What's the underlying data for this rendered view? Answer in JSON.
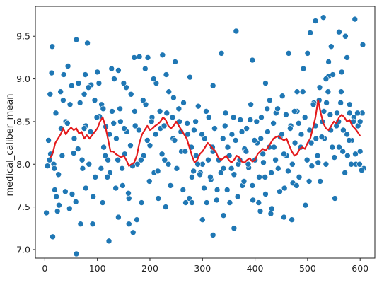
{
  "chart_data": {
    "type": "scatter",
    "ylabel": "medical_caliber_mean",
    "xlabel": "",
    "title": "",
    "xlim": [
      -18,
      628
    ],
    "ylim": [
      6.9,
      9.85
    ],
    "x_ticks": [
      0,
      100,
      200,
      300,
      400,
      500,
      600
    ],
    "y_ticks": [
      7.0,
      7.5,
      8.0,
      8.5,
      9.0,
      9.5
    ],
    "x_tick_labels": [
      "0",
      "100",
      "200",
      "300",
      "400",
      "500",
      "600"
    ],
    "y_tick_labels": [
      "7.0",
      "7.5",
      "8.0",
      "8.5",
      "9.0",
      "9.5"
    ],
    "grid": false,
    "scatter_color": "#1f77b4",
    "line_color": "#e41a1c",
    "series": [
      {
        "type": "scatter",
        "x": [
          3,
          5,
          7,
          9,
          11,
          13,
          15,
          17,
          19,
          21,
          24,
          27,
          30,
          33,
          36,
          40,
          44,
          48,
          52,
          56,
          60,
          64,
          68,
          72,
          75,
          78,
          81,
          84,
          88,
          92,
          96,
          100,
          104,
          108,
          112,
          116,
          120,
          124,
          128,
          132,
          136,
          140,
          144,
          148,
          152,
          156,
          160,
          164,
          168,
          172,
          176,
          180,
          184,
          188,
          192,
          196,
          200,
          204,
          208,
          212,
          216,
          220,
          224,
          228,
          232,
          236,
          240,
          244,
          248,
          252,
          256,
          260,
          264,
          268,
          272,
          276,
          280,
          284,
          288,
          292,
          296,
          300,
          304,
          308,
          312,
          316,
          320,
          324,
          328,
          332,
          336,
          340,
          344,
          348,
          352,
          356,
          360,
          364,
          368,
          372,
          376,
          380,
          384,
          388,
          392,
          396,
          400,
          404,
          408,
          412,
          416,
          420,
          424,
          428,
          432,
          436,
          440,
          444,
          448,
          452,
          456,
          460,
          464,
          468,
          472,
          476,
          480,
          484,
          488,
          492,
          496,
          500,
          504,
          508,
          512,
          516,
          520,
          524,
          528,
          532,
          536,
          540,
          544,
          548,
          552,
          556,
          560,
          564,
          568,
          572,
          576,
          580,
          584,
          588,
          592,
          596,
          600,
          604,
          607,
          10,
          14,
          18,
          22,
          26,
          31,
          35,
          39,
          43,
          47,
          51,
          55,
          59,
          63,
          67,
          71,
          77,
          83,
          87,
          91,
          95,
          99,
          103,
          107,
          111,
          115,
          119,
          123,
          127,
          131,
          135,
          139,
          143,
          147,
          151,
          155,
          159,
          163,
          167,
          171,
          175,
          179,
          183,
          187,
          191,
          195,
          199,
          203,
          207,
          211,
          215,
          219,
          223,
          227,
          231,
          235,
          239,
          243,
          247,
          251,
          255,
          259,
          263,
          267,
          271,
          275,
          279,
          283,
          287,
          291,
          295,
          299,
          303,
          307,
          311,
          315,
          319,
          323,
          327,
          331,
          335,
          339,
          343,
          347,
          351,
          355,
          359,
          363,
          367,
          371,
          375,
          379,
          383,
          387,
          391,
          395,
          399,
          403,
          407,
          411,
          415,
          419,
          423,
          427,
          431,
          435,
          439,
          443,
          447,
          451,
          455,
          459,
          463,
          467,
          471,
          475,
          479,
          483,
          487,
          491,
          495,
          499,
          503,
          507,
          511,
          515,
          519,
          523,
          527,
          531,
          535,
          539,
          543,
          547,
          551,
          555,
          559,
          563,
          567,
          571,
          575,
          579,
          583,
          587,
          591,
          595,
          599,
          603,
          60,
          78,
          122,
          160,
          230,
          300,
          340,
          360,
          410,
          455,
          470,
          505,
          515,
          522,
          530,
          535,
          540,
          560,
          575,
          600,
          605,
          75,
          150,
          170,
          245,
          320,
          395,
          420,
          480,
          500,
          545,
          565,
          580,
          590,
          320,
          110,
          280,
          140,
          430
        ],
        "y": [
          7.43,
          7.98,
          8.28,
          8.05,
          8.12,
          9.07,
          7.15,
          8.0,
          7.7,
          8.6,
          7.45,
          7.52,
          8.85,
          8.1,
          9.05,
          8.5,
          9.15,
          8.7,
          7.65,
          8.3,
          9.46,
          8.95,
          7.3,
          7.95,
          8.82,
          8.45,
          9.42,
          8.0,
          8.93,
          7.62,
          7.85,
          9.08,
          8.56,
          8.7,
          8.2,
          8.44,
          8.05,
          7.9,
          8.62,
          9.0,
          8.3,
          9.1,
          8.5,
          7.75,
          8.12,
          8.38,
          7.6,
          8.82,
          7.2,
          8.45,
          8.0,
          9.26,
          7.55,
          8.1,
          8.7,
          9.25,
          8.22,
          8.55,
          7.9,
          8.95,
          7.6,
          8.42,
          9.28,
          8.05,
          8.6,
          8.85,
          7.75,
          8.3,
          9.2,
          7.95,
          8.5,
          8.15,
          8.72,
          7.55,
          8.35,
          9.02,
          7.85,
          8.4,
          8.1,
          8.68,
          7.9,
          8.0,
          8.3,
          7.55,
          8.55,
          7.82,
          8.15,
          8.42,
          7.7,
          8.05,
          9.3,
          7.95,
          8.6,
          8.2,
          7.55,
          8.35,
          7.88,
          9.56,
          8.0,
          8.52,
          7.75,
          8.18,
          8.42,
          7.96,
          8.7,
          7.58,
          8.05,
          8.25,
          7.85,
          8.55,
          8.02,
          7.65,
          8.38,
          8.75,
          7.48,
          8.2,
          8.6,
          7.95,
          8.32,
          8.8,
          7.72,
          8.1,
          9.3,
          8.45,
          7.78,
          8.25,
          8.62,
          7.85,
          8.35,
          9.12,
          7.52,
          8.05,
          8.4,
          7.98,
          8.72,
          8.3,
          8.02,
          7.8,
          8.5,
          8.3,
          8.72,
          9.03,
          8.4,
          9.05,
          7.6,
          8.6,
          8.2,
          8.85,
          8.4,
          9.5,
          8.1,
          8.7,
          8.28,
          8.55,
          8.0,
          8.45,
          8.15,
          8.6,
          7.95,
          8.82,
          9.38,
          7.95,
          7.62,
          7.88,
          8.42,
          8.75,
          7.68,
          8.48,
          7.48,
          8.92,
          8.13,
          7.56,
          8.18,
          8.72,
          8.05,
          9.05,
          8.9,
          8.38,
          7.3,
          8.75,
          8.55,
          8.95,
          7.95,
          8.65,
          8.1,
          7.85,
          8.35,
          9.12,
          8.48,
          7.72,
          8.05,
          8.65,
          7.95,
          8.42,
          8.9,
          7.66,
          8.22,
          7.98,
          8.62,
          7.35,
          8.4,
          8.05,
          8.75,
          9.12,
          8.28,
          7.8,
          8.5,
          9.0,
          8.35,
          7.92,
          8.62,
          8.12,
          8.45,
          9.05,
          8.0,
          7.75,
          8.55,
          8.28,
          7.95,
          8.65,
          8.38,
          7.7,
          8.15,
          8.48,
          7.6,
          8.2,
          7.92,
          8.5,
          8.0,
          7.88,
          8.35,
          7.72,
          8.62,
          8.05,
          7.85,
          8.2,
          8.42,
          7.58,
          8.05,
          7.9,
          8.3,
          8.45,
          7.7,
          8.1,
          7.95,
          8.55,
          8.28,
          7.62,
          8.05,
          8.38,
          7.8,
          8.15,
          8.0,
          8.52,
          7.75,
          8.28,
          8.5,
          7.55,
          8.3,
          8.12,
          7.85,
          8.65,
          8.2,
          7.9,
          8.48,
          8.05,
          8.65,
          7.68,
          8.35,
          8.12,
          8.58,
          7.92,
          8.42,
          8.0,
          8.62,
          7.75,
          8.48,
          8.2,
          8.85,
          8.55,
          8.05,
          7.8,
          8.25,
          8.7,
          8.45,
          8.1,
          8.9,
          8.32,
          8.62,
          8.0,
          8.85,
          8.58,
          8.2,
          8.08,
          8.45,
          8.5,
          8.72,
          8.15,
          7.9,
          8.35,
          8.28,
          8.0,
          8.5,
          8.12,
          8.6,
          8.0,
          7.93,
          6.95,
          7.72,
          7.1,
          7.3,
          7.5,
          7.35,
          7.4,
          7.25,
          7.45,
          7.38,
          7.35,
          9.54,
          9.68,
          8.75,
          9.72,
          9.0,
          9.2,
          9.55,
          9.25,
          8.5,
          9.4,
          8.42,
          8.95,
          9.25,
          8.78,
          8.92,
          9.22,
          8.95,
          8.85,
          9.3,
          9.38,
          9.08,
          8.6,
          9.7,
          7.17,
          7.55,
          7.55,
          7.38,
          7.42
        ],
        "color": "#1f77b4"
      },
      {
        "type": "line",
        "x": [
          10,
          15,
          20,
          25,
          30,
          35,
          40,
          45,
          50,
          55,
          60,
          65,
          70,
          75,
          80,
          85,
          90,
          95,
          100,
          105,
          110,
          115,
          120,
          125,
          130,
          135,
          140,
          145,
          150,
          155,
          160,
          165,
          170,
          175,
          180,
          185,
          190,
          195,
          200,
          205,
          210,
          215,
          220,
          225,
          230,
          235,
          240,
          245,
          250,
          255,
          260,
          265,
          270,
          275,
          280,
          285,
          290,
          295,
          300,
          305,
          310,
          315,
          320,
          325,
          330,
          335,
          340,
          345,
          350,
          355,
          360,
          365,
          370,
          375,
          380,
          385,
          390,
          395,
          400,
          405,
          410,
          415,
          420,
          425,
          430,
          435,
          440,
          445,
          450,
          455,
          460,
          465,
          470,
          475,
          480,
          485,
          490,
          495,
          500,
          505,
          510,
          515,
          520,
          525,
          530,
          535,
          540,
          545,
          550,
          555,
          560,
          565,
          570,
          575,
          580,
          585,
          590,
          595,
          600
        ],
        "y": [
          8.07,
          8.13,
          8.25,
          8.3,
          8.35,
          8.42,
          8.35,
          8.4,
          8.43,
          8.4,
          8.42,
          8.36,
          8.38,
          8.3,
          8.34,
          8.3,
          8.34,
          8.38,
          8.42,
          8.5,
          8.55,
          8.45,
          8.3,
          8.15,
          8.15,
          8.12,
          8.1,
          8.08,
          8.1,
          8.05,
          7.98,
          8.0,
          8.02,
          8.1,
          8.25,
          8.35,
          8.4,
          8.45,
          8.4,
          8.42,
          8.45,
          8.47,
          8.5,
          8.55,
          8.52,
          8.45,
          8.42,
          8.45,
          8.5,
          8.45,
          8.4,
          8.35,
          8.3,
          8.2,
          8.1,
          8.02,
          8.05,
          8.12,
          8.15,
          8.2,
          8.25,
          8.22,
          8.18,
          8.15,
          8.08,
          8.05,
          8.07,
          8.1,
          8.05,
          8.02,
          8.05,
          8.1,
          8.08,
          8.03,
          8.02,
          8.05,
          8.07,
          8.03,
          8.05,
          8.12,
          8.15,
          8.18,
          8.16,
          8.2,
          8.25,
          8.3,
          8.32,
          8.33,
          8.3,
          8.28,
          8.3,
          8.22,
          8.15,
          8.1,
          8.12,
          8.18,
          8.2,
          8.18,
          8.25,
          8.3,
          8.42,
          8.55,
          8.75,
          8.6,
          8.48,
          8.42,
          8.4,
          8.45,
          8.5,
          8.48,
          8.55,
          8.58,
          8.55,
          8.5,
          8.52,
          8.45,
          8.42,
          8.38,
          8.33
        ],
        "color": "#e41a1c"
      }
    ]
  }
}
